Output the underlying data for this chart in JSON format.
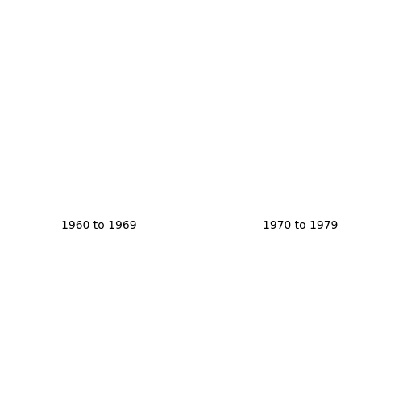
{
  "title_left": "1960 to 1969",
  "title_right": "1970 to 1979",
  "title_fontsize": 10,
  "background_color": "#ffffff",
  "figsize": [
    5.0,
    5.09
  ],
  "dpi": 100,
  "colors": {
    "no_data": "#eef2df",
    "light_green": "#c5d9a0",
    "medium_green": "#7ab87a",
    "dark_green": "#2d8a3e",
    "outline": "#555555",
    "ocean": "#ffffff"
  },
  "region_colors_1960": {
    "Highland": "medium_green",
    "Grampian": "dark_green",
    "Tayside": "dark_green",
    "Fife": "medium_green",
    "Lothian": "medium_green",
    "Strathclyde": "medium_green",
    "Central": "dark_green",
    "Borders": "medium_green",
    "Dumfries and Galloway": "medium_green",
    "Orkney": "no_data",
    "Shetland": "no_data",
    "Western Isles": "no_data",
    "Northumberland": "light_green",
    "Durham": "light_green",
    "Cumbria": "medium_green",
    "Tyne and Wear": "light_green",
    "Cleveland": "light_green",
    "North Yorkshire": "light_green",
    "West Yorkshire": "light_green",
    "South Yorkshire": "light_green",
    "East Yorkshire": "light_green",
    "Humberside": "light_green",
    "Lancashire": "light_green",
    "Greater Manchester": "light_green",
    "Merseyside": "no_data",
    "Cheshire": "no_data",
    "Derbyshire": "no_data",
    "Nottinghamshire": "light_green",
    "Lincolnshire": "light_green",
    "Norfolk": "light_green",
    "Suffolk": "light_green",
    "Essex": "no_data",
    "Hertfordshire": "no_data",
    "Bedfordshire": "no_data",
    "Cambridgeshire": "no_data",
    "Northamptonshire": "no_data",
    "Leicestershire": "no_data",
    "Warwickshire": "no_data",
    "Staffordshire": "no_data",
    "Shropshire": "no_data",
    "Worcestershire": "no_data",
    "Herefordshire": "no_data",
    "Gloucestershire": "no_data",
    "Oxfordshire": "no_data",
    "Buckinghamshire": "no_data",
    "Berkshire": "no_data",
    "Surrey": "light_green",
    "Kent": "light_green",
    "East Sussex": "light_green",
    "West Sussex": "light_green",
    "Hampshire": "medium_green",
    "Wiltshire": "no_data",
    "Dorset": "dark_green",
    "Somerset": "no_data",
    "Devon": "light_green",
    "Cornwall": "no_data",
    "Avon": "medium_green",
    "Greater London": "no_data",
    "West Midlands": "no_data",
    "Gwynedd": "no_data",
    "Clwyd": "no_data",
    "Powys": "no_data",
    "Dyfed": "no_data",
    "West Glamorgan": "no_data",
    "Mid Glamorgan": "no_data",
    "South Glamorgan": "no_data",
    "Gwent": "no_data"
  },
  "region_colors_1970": {
    "Highland": "dark_green",
    "Grampian": "dark_green",
    "Tayside": "dark_green",
    "Fife": "dark_green",
    "Lothian": "dark_green",
    "Strathclyde": "dark_green",
    "Central": "dark_green",
    "Borders": "dark_green",
    "Dumfries and Galloway": "dark_green",
    "Orkney": "no_data",
    "Shetland": "no_data",
    "Western Isles": "no_data",
    "Northumberland": "dark_green",
    "Durham": "dark_green",
    "Cumbria": "dark_green",
    "Tyne and Wear": "dark_green",
    "Cleveland": "medium_green",
    "North Yorkshire": "medium_green",
    "West Yorkshire": "medium_green",
    "South Yorkshire": "light_green",
    "East Yorkshire": "medium_green",
    "Humberside": "dark_green",
    "Lancashire": "medium_green",
    "Greater Manchester": "light_green",
    "Merseyside": "no_data",
    "Cheshire": "no_data",
    "Derbyshire": "no_data",
    "Nottinghamshire": "light_green",
    "Lincolnshire": "light_green",
    "Norfolk": "medium_green",
    "Suffolk": "medium_green",
    "Essex": "dark_green",
    "Hertfordshire": "no_data",
    "Bedfordshire": "no_data",
    "Cambridgeshire": "no_data",
    "Northamptonshire": "no_data",
    "Leicestershire": "no_data",
    "Warwickshire": "no_data",
    "Staffordshire": "no_data",
    "Shropshire": "no_data",
    "Worcestershire": "no_data",
    "Herefordshire": "no_data",
    "Gloucestershire": "no_data",
    "Oxfordshire": "no_data",
    "Buckinghamshire": "no_data",
    "Berkshire": "medium_green",
    "Surrey": "dark_green",
    "Kent": "dark_green",
    "East Sussex": "dark_green",
    "West Sussex": "dark_green",
    "Hampshire": "dark_green",
    "Wiltshire": "medium_green",
    "Dorset": "dark_green",
    "Somerset": "medium_green",
    "Devon": "medium_green",
    "Cornwall": "medium_green",
    "Avon": "dark_green",
    "Greater London": "no_data",
    "West Midlands": "no_data",
    "Gwynedd": "no_data",
    "Clwyd": "no_data",
    "Powys": "no_data",
    "Dyfed": "no_data",
    "West Glamorgan": "no_data",
    "Mid Glamorgan": "no_data",
    "South Glamorgan": "no_data",
    "Gwent": "light_green"
  }
}
